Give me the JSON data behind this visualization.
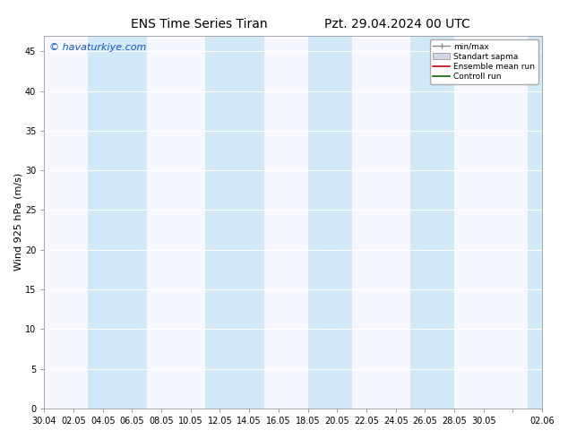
{
  "title_left": "ENS Time Series Tiran",
  "title_right": "Pzt. 29.04.2024 00 UTC",
  "ylabel": "Wind 925 hPa (m/s)",
  "watermark": "© havaturkiye.com",
  "ylim": [
    0,
    47
  ],
  "yticks": [
    0,
    5,
    10,
    15,
    20,
    25,
    30,
    35,
    40,
    45
  ],
  "xtick_labels": [
    "30.04",
    "02.05",
    "04.05",
    "06.05",
    "08.05",
    "10.05",
    "12.05",
    "14.05",
    "16.05",
    "18.05",
    "20.05",
    "22.05",
    "24.05",
    "26.05",
    "28.05",
    "30.05",
    "",
    "02.06"
  ],
  "background_color": "#ffffff",
  "plot_bg_color": "#f5f9ff",
  "band_color": "#d0e8f8",
  "legend_entries": [
    "min/max",
    "Standart sapma",
    "Ensemble mean run",
    "Controll run"
  ],
  "figsize": [
    6.34,
    4.9
  ],
  "dpi": 100,
  "title_fontsize": 10,
  "tick_fontsize": 7,
  "ylabel_fontsize": 8,
  "watermark_color": "#1155cc",
  "watermark_fontsize": 8,
  "grid_color": "#ffffff",
  "spine_color": "#999999"
}
